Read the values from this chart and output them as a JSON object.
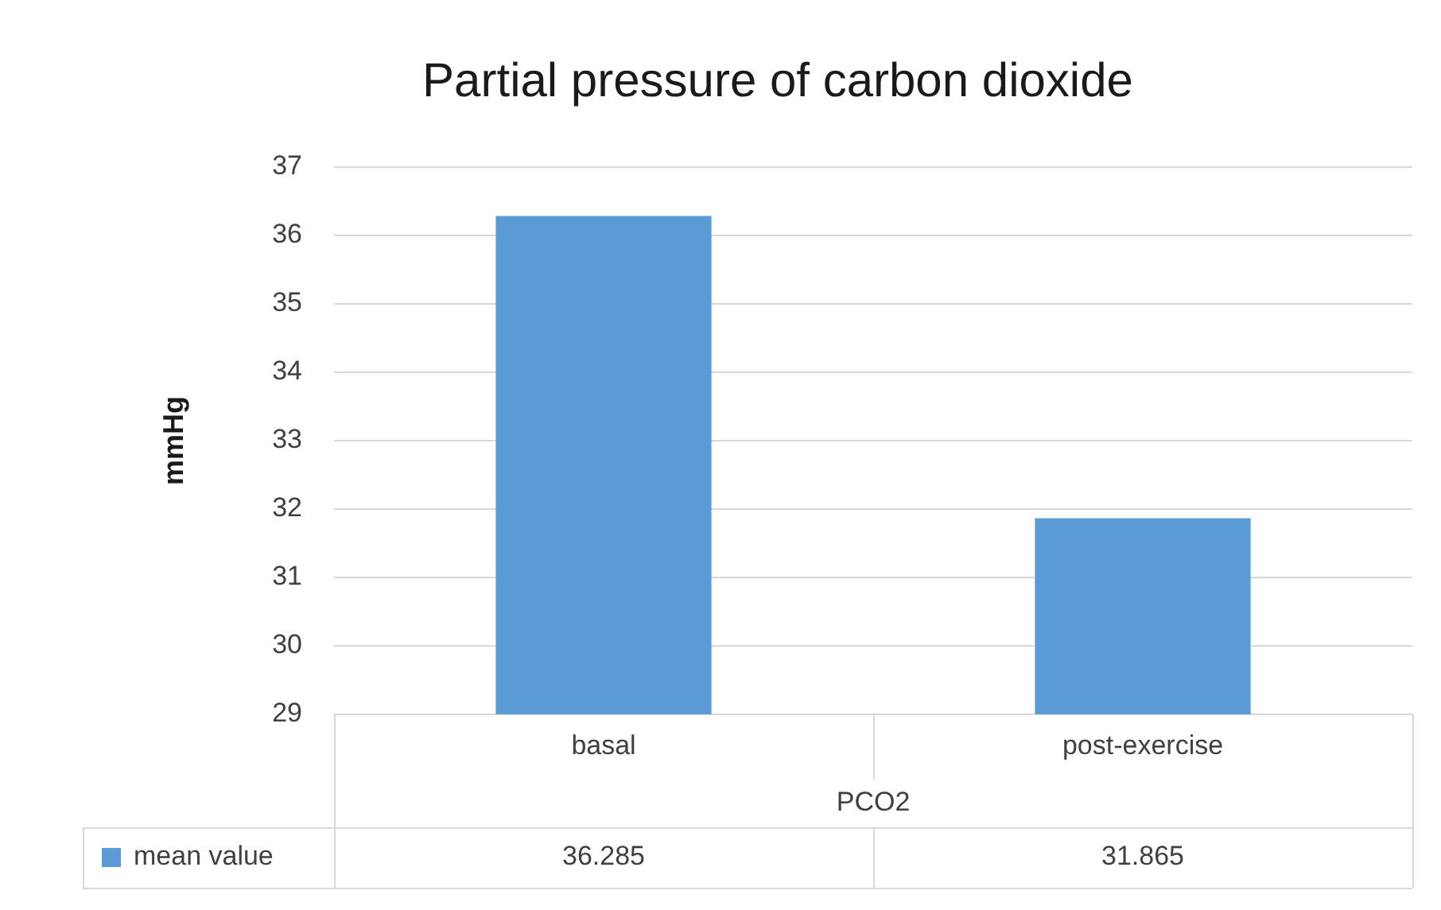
{
  "chart_data": {
    "type": "bar",
    "title": "Partial pressure of carbon dioxide",
    "ylabel": "mmHg",
    "xlabel": "PCO2",
    "categories": [
      "basal",
      "post-exercise"
    ],
    "series": [
      {
        "name": "mean value",
        "color": "#5b9bd5",
        "values": [
          36.285,
          31.865
        ]
      }
    ],
    "ylim": [
      29,
      37
    ],
    "yticks": [
      29,
      30,
      31,
      32,
      33,
      34,
      35,
      36,
      37
    ],
    "grid": "y",
    "legend": "bottom",
    "data_labels": true
  }
}
